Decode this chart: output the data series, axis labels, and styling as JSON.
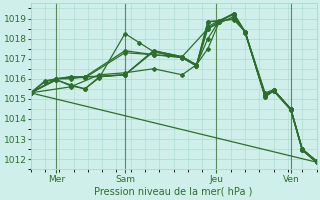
{
  "title": "",
  "xlabel": "Pression niveau de la mer( hPa )",
  "ylabel": "",
  "bg_color": "#cff0ea",
  "grid_color": "#a8d8d0",
  "line_color": "#2d6e2d",
  "ylim": [
    1011.5,
    1019.75
  ],
  "xlim": [
    0,
    10
  ],
  "yticks": [
    1012,
    1013,
    1014,
    1015,
    1016,
    1017,
    1018,
    1019
  ],
  "xtick_positions": [
    0.9,
    3.3,
    6.5,
    9.1
  ],
  "xtick_labels": [
    "Mer",
    "Sam",
    "Jeu",
    "Ven"
  ],
  "lines": [
    [
      0.0,
      1015.3,
      0.5,
      1015.9,
      0.9,
      1016.0,
      1.4,
      1016.1,
      1.9,
      1016.05,
      3.3,
      1017.3,
      4.3,
      1017.2,
      5.3,
      1017.05,
      5.8,
      1016.65,
      6.2,
      1018.85,
      6.6,
      1018.85,
      7.1,
      1019.25,
      7.5,
      1018.35,
      8.2,
      1015.1,
      8.5,
      1015.4,
      9.1,
      1014.45,
      9.5,
      1012.45,
      10.0,
      1011.85
    ],
    [
      0.0,
      1015.3,
      0.5,
      1015.85,
      0.9,
      1016.0,
      1.4,
      1016.1,
      1.9,
      1016.1,
      3.3,
      1017.4,
      4.3,
      1017.2,
      5.3,
      1017.1,
      5.8,
      1016.7,
      6.2,
      1017.5,
      6.6,
      1018.85,
      7.1,
      1019.0,
      7.5,
      1018.35,
      8.2,
      1015.3,
      8.5,
      1015.45,
      9.1,
      1014.5,
      9.5,
      1012.5,
      10.0,
      1011.9
    ],
    [
      0.0,
      1015.3,
      0.9,
      1015.95,
      1.4,
      1015.7,
      1.9,
      1015.5,
      2.4,
      1016.05,
      3.3,
      1018.25,
      3.8,
      1017.8,
      4.3,
      1017.35,
      4.8,
      1017.2,
      5.3,
      1017.05,
      5.8,
      1016.65,
      6.2,
      1018.5,
      6.6,
      1018.85,
      7.1,
      1019.25,
      7.5,
      1018.35,
      8.2,
      1015.1,
      8.5,
      1015.4,
      9.1,
      1014.45,
      9.5,
      1012.45,
      10.0,
      1011.85
    ],
    [
      0.0,
      1015.3,
      0.9,
      1015.95,
      1.4,
      1015.65,
      1.9,
      1015.5,
      2.4,
      1016.1,
      3.3,
      1016.2,
      4.3,
      1017.35,
      5.3,
      1017.05,
      5.8,
      1016.65,
      6.2,
      1018.85,
      6.6,
      1018.9,
      7.1,
      1019.25,
      7.5,
      1018.3,
      8.2,
      1015.15,
      8.5,
      1015.4,
      9.1,
      1014.5,
      9.5,
      1012.5,
      10.0,
      1011.9
    ],
    [
      0.0,
      1015.3,
      0.9,
      1016.0,
      1.4,
      1016.0,
      1.9,
      1016.1,
      2.4,
      1016.1,
      3.3,
      1016.2,
      4.3,
      1017.4,
      5.3,
      1017.1,
      5.8,
      1016.7,
      6.2,
      1018.6,
      6.6,
      1018.9,
      7.1,
      1019.2,
      7.5,
      1018.3,
      8.2,
      1015.15,
      8.5,
      1015.45,
      9.1,
      1014.5,
      9.5,
      1012.45,
      10.0,
      1011.85
    ],
    [
      0.0,
      1015.3,
      0.9,
      1016.0,
      1.9,
      1016.1,
      3.3,
      1016.2,
      4.3,
      1017.4,
      5.3,
      1017.1,
      6.2,
      1018.5,
      7.1,
      1019.1,
      7.5,
      1018.35,
      8.2,
      1015.2,
      8.5,
      1015.45,
      9.1,
      1014.5,
      9.5,
      1012.5,
      10.0,
      1011.9
    ],
    [
      0.0,
      1015.3,
      1.4,
      1015.6,
      2.4,
      1016.2,
      3.3,
      1016.3,
      4.3,
      1016.5,
      5.3,
      1016.2,
      5.8,
      1016.7,
      6.2,
      1018.0,
      6.6,
      1018.9,
      7.1,
      1018.95,
      7.5,
      1018.35,
      8.2,
      1015.2,
      8.5,
      1015.45,
      9.1,
      1014.5,
      9.5,
      1012.5,
      10.0,
      1011.9
    ],
    [
      0.0,
      1015.3,
      10.0,
      1011.85
    ]
  ],
  "marker": "D",
  "marker_size": 2.0,
  "linewidth": 0.9,
  "vlines": [
    0.9,
    3.3,
    6.5,
    9.1
  ]
}
